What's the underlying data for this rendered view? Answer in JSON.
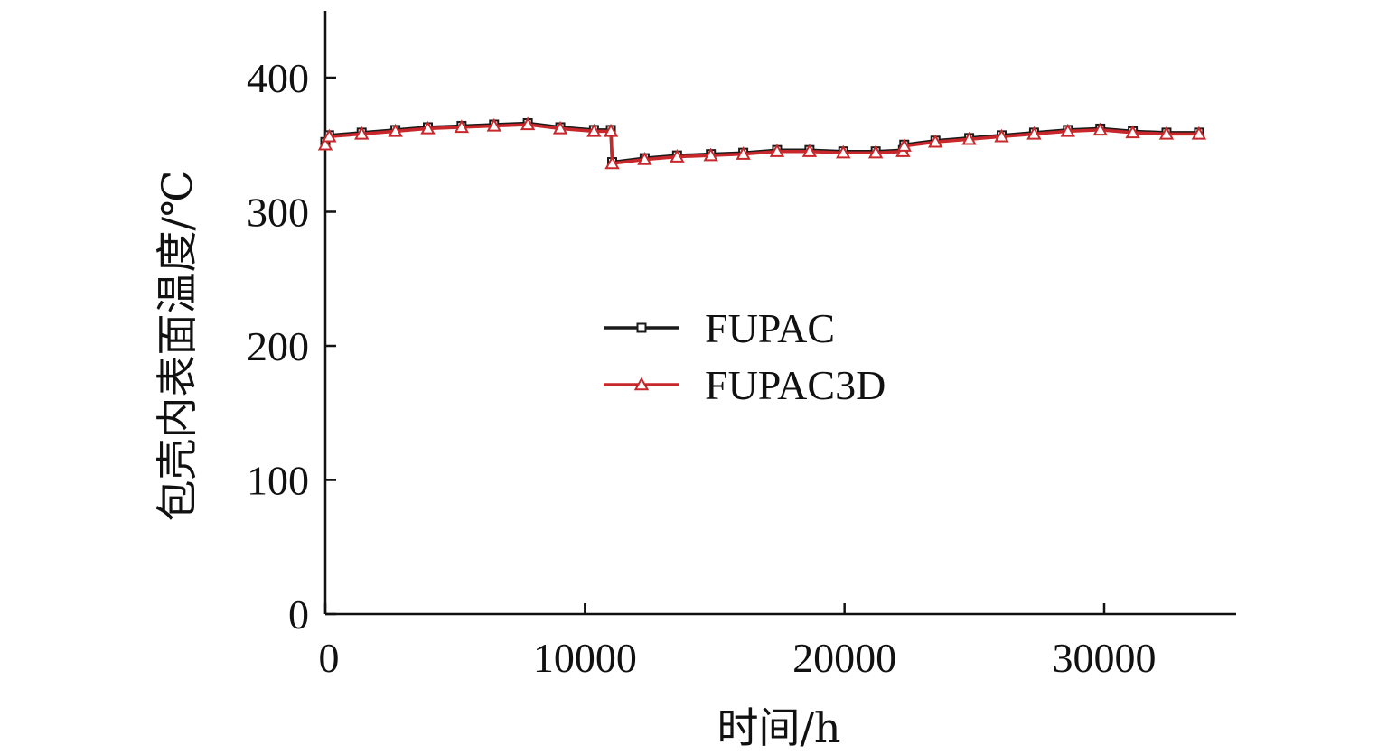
{
  "chart_data": {
    "type": "line",
    "xlabel": "时间/h",
    "ylabel": "包壳内表面温度/℃",
    "xlim": [
      0,
      35000
    ],
    "ylim": [
      0,
      450
    ],
    "xticks": [
      0,
      10000,
      20000,
      30000
    ],
    "yticks": [
      0,
      100,
      200,
      300,
      400
    ],
    "grid": false,
    "legend_position": "center",
    "series": [
      {
        "name": "FUPAC",
        "color": "#1a1a1a",
        "marker": "square",
        "points": [
          [
            0,
            352
          ],
          [
            150,
            357
          ],
          [
            1400,
            359
          ],
          [
            2700,
            361
          ],
          [
            3950,
            363
          ],
          [
            5250,
            364
          ],
          [
            6500,
            365
          ],
          [
            7800,
            366
          ],
          [
            9050,
            363
          ],
          [
            10350,
            361
          ],
          [
            11000,
            361
          ],
          [
            11050,
            337
          ],
          [
            12300,
            340
          ],
          [
            13550,
            342
          ],
          [
            14850,
            343
          ],
          [
            16100,
            344
          ],
          [
            17400,
            346
          ],
          [
            18650,
            346
          ],
          [
            19950,
            345
          ],
          [
            21200,
            345
          ],
          [
            22250,
            346
          ],
          [
            22300,
            350
          ],
          [
            23500,
            353
          ],
          [
            24800,
            355
          ],
          [
            26050,
            357
          ],
          [
            27300,
            359
          ],
          [
            28600,
            361
          ],
          [
            29850,
            362
          ],
          [
            31100,
            360
          ],
          [
            32400,
            359
          ],
          [
            33650,
            359
          ]
        ]
      },
      {
        "name": "FUPAC3D",
        "color": "#c8282b",
        "marker": "triangle",
        "points": [
          [
            0,
            350
          ],
          [
            150,
            356
          ],
          [
            1400,
            358
          ],
          [
            2700,
            360
          ],
          [
            3950,
            362
          ],
          [
            5250,
            363
          ],
          [
            6500,
            364
          ],
          [
            7800,
            365
          ],
          [
            9050,
            362
          ],
          [
            10350,
            360
          ],
          [
            11000,
            360
          ],
          [
            11050,
            336
          ],
          [
            12300,
            339
          ],
          [
            13550,
            341
          ],
          [
            14850,
            342
          ],
          [
            16100,
            343
          ],
          [
            17400,
            345
          ],
          [
            18650,
            345
          ],
          [
            19950,
            344
          ],
          [
            21200,
            344
          ],
          [
            22250,
            345
          ],
          [
            22300,
            349
          ],
          [
            23500,
            352
          ],
          [
            24800,
            354
          ],
          [
            26050,
            356
          ],
          [
            27300,
            358
          ],
          [
            28600,
            360
          ],
          [
            29850,
            361
          ],
          [
            31100,
            359
          ],
          [
            32400,
            358
          ],
          [
            33650,
            358
          ]
        ]
      }
    ]
  }
}
